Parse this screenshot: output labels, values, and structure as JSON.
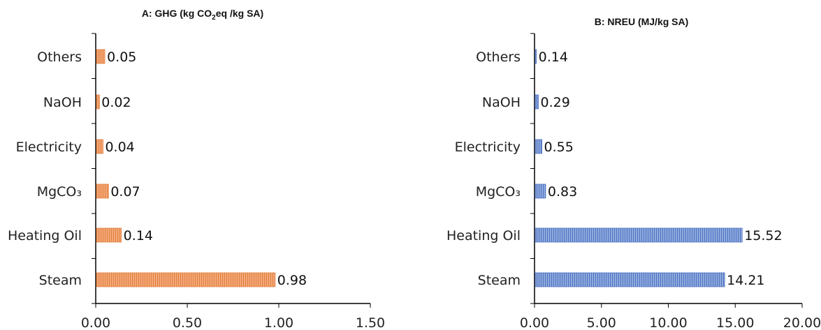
{
  "chart_data": [
    {
      "type": "bar",
      "orientation": "horizontal",
      "title": "A: GHG (kg CO2eq /kg SA)",
      "title_parts": {
        "pre": "A: GHG (kg CO",
        "sub": "2",
        "post": "eq /kg SA)"
      },
      "categories": [
        "Others",
        "NaOH",
        "Electricity",
        "MgCO₃",
        "Heating Oil",
        "Steam"
      ],
      "values": [
        0.05,
        0.02,
        0.04,
        0.07,
        0.14,
        0.98
      ],
      "value_labels": [
        "0.05",
        "0.02",
        "0.04",
        "0.07",
        "0.14",
        "0.98"
      ],
      "xlim": [
        0,
        1.5
      ],
      "xticks": [
        "0.00",
        "0.50",
        "1.00",
        "1.50"
      ],
      "grid": false,
      "bar_color": "#f4a878",
      "bar_stroke": "#e08040"
    },
    {
      "type": "bar",
      "orientation": "horizontal",
      "title": "B: NREU (MJ/kg SA)",
      "categories": [
        "Others",
        "NaOH",
        "Electricity",
        "MgCO₃",
        "Heating Oil",
        "Steam"
      ],
      "values": [
        0.14,
        0.29,
        0.55,
        0.83,
        15.52,
        14.21
      ],
      "value_labels": [
        "0.14",
        "0.29",
        "0.55",
        "0.83",
        "15.52",
        "14.21"
      ],
      "xlim": [
        0,
        20
      ],
      "xticks": [
        "0.00",
        "5.00",
        "10.00",
        "15.00",
        "20.00"
      ],
      "grid": false,
      "bar_color": "#8faadc",
      "bar_stroke": "#4f72c4"
    }
  ]
}
